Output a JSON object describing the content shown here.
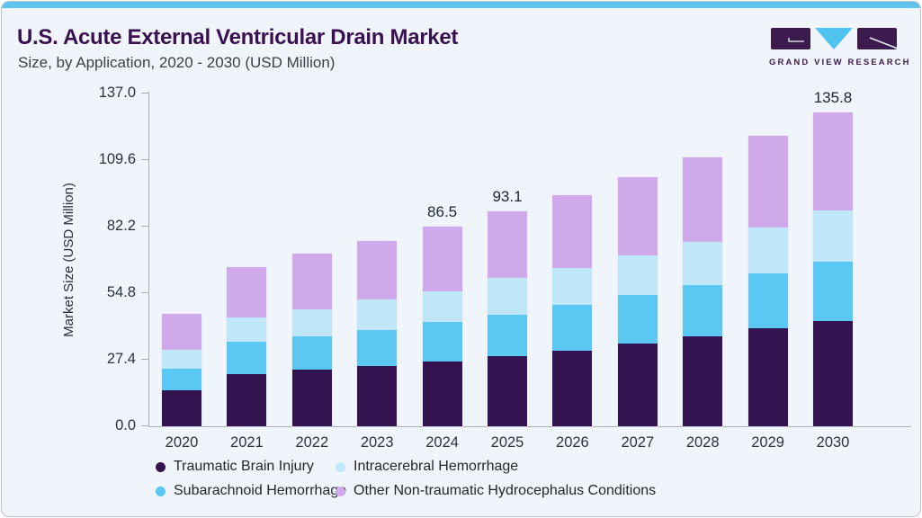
{
  "header": {
    "title": "U.S. Acute External Ventricular Drain Market",
    "subtitle": "Size, by Application, 2020 - 2030 (USD Million)"
  },
  "logo": {
    "text": "GRAND VIEW RESEARCH",
    "purple": "#3b1a4e",
    "blue": "#4fc4f0"
  },
  "colors": {
    "card_background": "#eff5fa",
    "top_strip": "#5fc3ee",
    "title_text": "#3a1053",
    "axis_line": "#a7adb5"
  },
  "chart_data": {
    "type": "bar",
    "stacked": true,
    "title": "U.S. Acute External Ventricular Drain Market Size, by Application, 2020 - 2030 (USD Million)",
    "xlabel": "",
    "ylabel": "Market Size (USD Million)",
    "ylim": [
      0,
      137.0
    ],
    "ytick_labels": [
      "0.0",
      "27.4",
      "54.8",
      "82.2",
      "109.6",
      "137.0"
    ],
    "grid": false,
    "legend_position": "bottom",
    "categories": [
      "2020",
      "2021",
      "2022",
      "2023",
      "2024",
      "2025",
      "2026",
      "2027",
      "2028",
      "2029",
      "2030"
    ],
    "series": [
      {
        "name": "Traumatic Brain Injury",
        "color": "#341450",
        "values": [
          15.7,
          22.7,
          24.6,
          26.2,
          28.1,
          30.5,
          32.8,
          35.9,
          39.0,
          42.5,
          45.6
        ]
      },
      {
        "name": "Subarachnoid Hemorrhage",
        "color": "#5ac8f2",
        "values": [
          9.3,
          14.0,
          14.4,
          15.6,
          17.2,
          17.9,
          19.8,
          21.0,
          22.2,
          23.8,
          25.7
        ]
      },
      {
        "name": "Intracerebral Hemorrhage",
        "color": "#bfe7f9",
        "values": [
          8.2,
          10.5,
          11.7,
          13.2,
          13.2,
          15.9,
          16.0,
          17.2,
          18.7,
          19.8,
          22.2
        ]
      },
      {
        "name": "Other Non-traumatic Hydrocephalus Conditions",
        "color": "#d0a9ea",
        "values": [
          15.6,
          21.8,
          24.1,
          25.3,
          28.0,
          28.8,
          31.5,
          33.8,
          36.6,
          39.7,
          42.3
        ]
      }
    ],
    "totals": [
      48.8,
      69.0,
      74.8,
      80.3,
      86.5,
      93.1,
      100.1,
      107.9,
      116.5,
      125.8,
      135.8
    ],
    "bar_total_labels": {
      "2024": "86.5",
      "2025": "93.1",
      "2030": "135.8"
    }
  },
  "legend": {
    "items": [
      {
        "label": "Traumatic Brain Injury",
        "color": "#341450"
      },
      {
        "label": "Intracerebral Hemorrhage",
        "color": "#bfe7f9"
      },
      {
        "label": "Subarachnoid Hemorrhage",
        "color": "#5ac8f2"
      },
      {
        "label": "Other Non-traumatic Hydrocephalus Conditions",
        "color": "#d0a9ea"
      }
    ]
  }
}
